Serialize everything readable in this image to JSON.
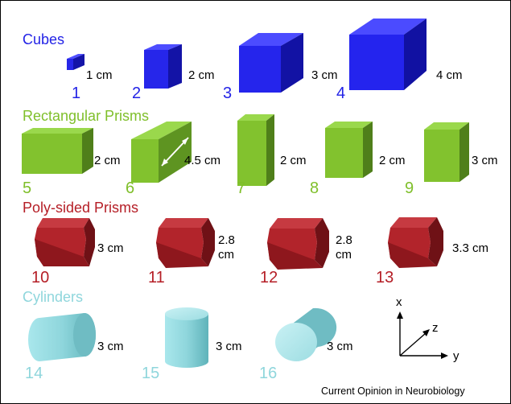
{
  "colors": {
    "cubes": "#2323e6",
    "rect_prisms": "#7fbf2a",
    "poly_prisms": "#b51e26",
    "cylinders": "#8fd6dc",
    "text": "#000000"
  },
  "sections": {
    "cubes": {
      "title": "Cubes",
      "items": [
        {
          "number": "1",
          "size": "1 cm"
        },
        {
          "number": "2",
          "size": "2 cm"
        },
        {
          "number": "3",
          "size": "3 cm"
        },
        {
          "number": "4",
          "size": "4 cm"
        }
      ]
    },
    "rect_prisms": {
      "title": "Rectangular Prisms",
      "items": [
        {
          "number": "5",
          "size": "2 cm"
        },
        {
          "number": "6",
          "size": "4.5 cm"
        },
        {
          "number": "7",
          "size": "2 cm"
        },
        {
          "number": "8",
          "size": "2 cm"
        },
        {
          "number": "9",
          "size": "3 cm"
        }
      ]
    },
    "poly_prisms": {
      "title": "Poly-sided Prisms",
      "items": [
        {
          "number": "10",
          "size_line1": "3 cm",
          "size_line2": ""
        },
        {
          "number": "11",
          "size_line1": "2.8",
          "size_line2": "cm"
        },
        {
          "number": "12",
          "size_line1": "2.8",
          "size_line2": "cm"
        },
        {
          "number": "13",
          "size_line1": "3.3 cm",
          "size_line2": ""
        }
      ]
    },
    "cylinders": {
      "title": "Cylinders",
      "items": [
        {
          "number": "14",
          "size": "3 cm"
        },
        {
          "number": "15",
          "size": "3 cm"
        },
        {
          "number": "16",
          "size": "3 cm"
        }
      ]
    }
  },
  "axes": {
    "x": "x",
    "y": "y",
    "z": "z"
  },
  "credit": "Current Opinion in Neurobiology"
}
